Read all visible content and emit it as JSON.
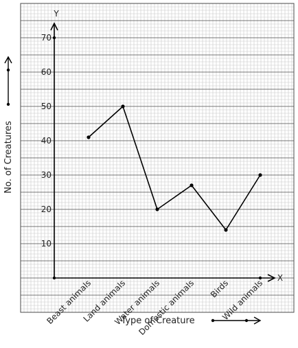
{
  "chart_data": {
    "type": "line",
    "categories": [
      "Beast animals",
      "Land animals",
      "Water animals",
      "Domestic animals",
      "Birds",
      "Wild animals"
    ],
    "values": [
      41,
      50,
      20,
      27,
      14,
      30
    ],
    "xlabel": "Type of Creature",
    "ylabel": "No. of Creatures",
    "x_axis_letter": "X",
    "y_axis_letter": "Y",
    "yticks": [
      "10",
      "20",
      "30",
      "40",
      "50",
      "60",
      "70"
    ],
    "ylim": [
      0,
      70
    ],
    "grid": true,
    "colors": {
      "line": "#000000",
      "grid_minor": "#c8c8c8",
      "grid_major": "#4a4a4a",
      "text": "#222222"
    }
  }
}
